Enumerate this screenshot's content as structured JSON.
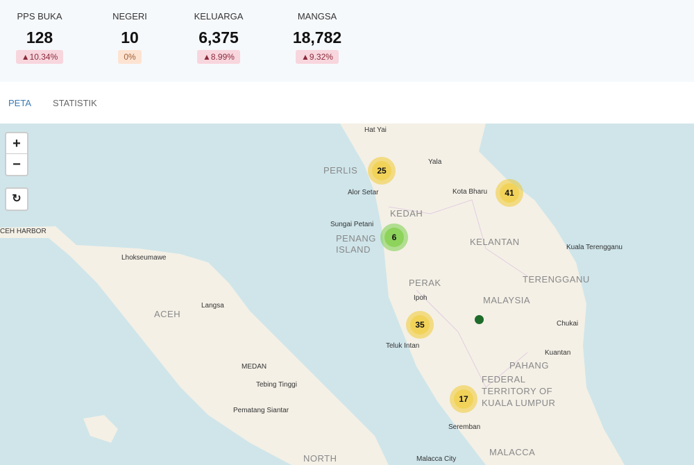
{
  "stats": [
    {
      "label": "PPS BUKA",
      "value": "128",
      "change": "▲10.34%",
      "trend": "up"
    },
    {
      "label": "NEGERI",
      "value": "10",
      "change": "0%",
      "trend": "flat"
    },
    {
      "label": "KELUARGA",
      "value": "6,375",
      "change": "▲8.99%",
      "trend": "up"
    },
    {
      "label": "MANGSA",
      "value": "18,782",
      "change": "▲9.32%",
      "trend": "up"
    }
  ],
  "tabs": [
    {
      "label": "PETA",
      "active": true
    },
    {
      "label": "STATISTIK",
      "active": false
    }
  ],
  "map_controls": {
    "zoom_in": "+",
    "zoom_out": "−",
    "reset": "↻"
  },
  "cities": [
    "Hat Yai",
    "Yala",
    "Alor Setar",
    "Kota Bharu",
    "Sungai Petani",
    "Kuala Terengganu",
    "Ipoh",
    "Teluk Intan",
    "Chukai",
    "Kuantan",
    "Seremban",
    "CEH HARBOR",
    "Lhokseumawe",
    "Langsa",
    "MEDAN",
    "Tebing Tinggi",
    "Pematang Siantar",
    "Malacca City"
  ],
  "regions": [
    "KEDAH",
    "PENANG ISLAND",
    "PERLIS",
    "KELANTAN",
    "PERAK",
    "TERENGGANU",
    "MALAYSIA",
    "PAHANG",
    "FEDERAL TERRITORY OF KUALA LUMPUR",
    "MALACCA",
    "ACEH",
    "NORTH"
  ],
  "clusters": [
    {
      "count": "25",
      "color": "#f1d357"
    },
    {
      "count": "41",
      "color": "#f1d357"
    },
    {
      "count": "6",
      "color": "#8cd25a"
    },
    {
      "count": "35",
      "color": "#f1d357"
    },
    {
      "count": "17",
      "color": "#f1d357"
    }
  ],
  "marker_color": "#1e6b2a"
}
